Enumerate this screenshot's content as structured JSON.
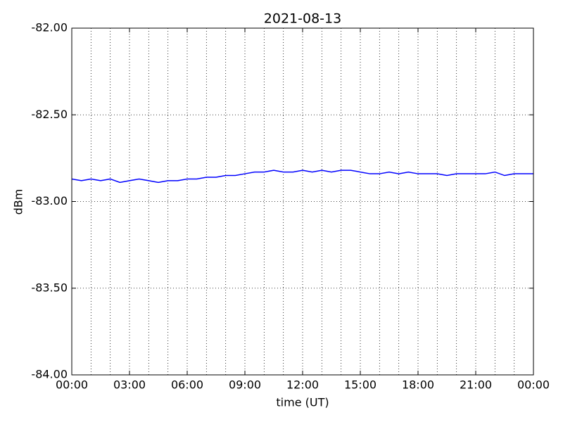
{
  "chart_data": {
    "type": "line",
    "title": "2021-08-13",
    "xlabel": "time (UT)",
    "ylabel": "dBm",
    "x": [
      0,
      0.5,
      1,
      1.5,
      2,
      2.5,
      3,
      3.5,
      4,
      4.5,
      5,
      5.5,
      6,
      6.5,
      7,
      7.5,
      8,
      8.5,
      9,
      9.5,
      10,
      10.5,
      11,
      11.5,
      12,
      12.5,
      13,
      13.5,
      14,
      14.5,
      15,
      15.5,
      16,
      16.5,
      17,
      17.5,
      18,
      18.5,
      19,
      19.5,
      20,
      20.5,
      21,
      21.5,
      22,
      22.5,
      23,
      23.5,
      24
    ],
    "series": [
      {
        "name": "dBm",
        "color": "#0000ff",
        "values": [
          -82.87,
          -82.88,
          -82.87,
          -82.88,
          -82.87,
          -82.89,
          -82.88,
          -82.87,
          -82.88,
          -82.89,
          -82.88,
          -82.88,
          -82.87,
          -82.87,
          -82.86,
          -82.86,
          -82.85,
          -82.85,
          -82.84,
          -82.83,
          -82.83,
          -82.82,
          -82.83,
          -82.83,
          -82.82,
          -82.83,
          -82.82,
          -82.83,
          -82.82,
          -82.82,
          -82.83,
          -82.84,
          -82.84,
          -82.83,
          -82.84,
          -82.83,
          -82.84,
          -82.84,
          -82.84,
          -82.85,
          -82.84,
          -82.84,
          -82.84,
          -82.84,
          -82.83,
          -82.85,
          -82.84,
          -82.84,
          -82.84
        ]
      }
    ],
    "xlim": [
      0,
      24
    ],
    "xticks": [
      {
        "value": 0,
        "label": "00:00"
      },
      {
        "value": 3,
        "label": "03:00"
      },
      {
        "value": 6,
        "label": "06:00"
      },
      {
        "value": 9,
        "label": "09:00"
      },
      {
        "value": 12,
        "label": "12:00"
      },
      {
        "value": 15,
        "label": "15:00"
      },
      {
        "value": 18,
        "label": "18:00"
      },
      {
        "value": 21,
        "label": "21:00"
      },
      {
        "value": 24,
        "label": "00:00"
      }
    ],
    "xminorticks": [
      1,
      2,
      4,
      5,
      7,
      8,
      10,
      11,
      13,
      14,
      16,
      17,
      19,
      20,
      22,
      23
    ],
    "ylim": [
      -84,
      -82
    ],
    "yticks": [
      {
        "value": -84,
        "label": "-84.00"
      },
      {
        "value": -83.5,
        "label": "-83.50"
      },
      {
        "value": -83,
        "label": "-83.00"
      },
      {
        "value": -82.5,
        "label": "-82.50"
      },
      {
        "value": -82,
        "label": "-82.00"
      }
    ],
    "grid": true
  }
}
